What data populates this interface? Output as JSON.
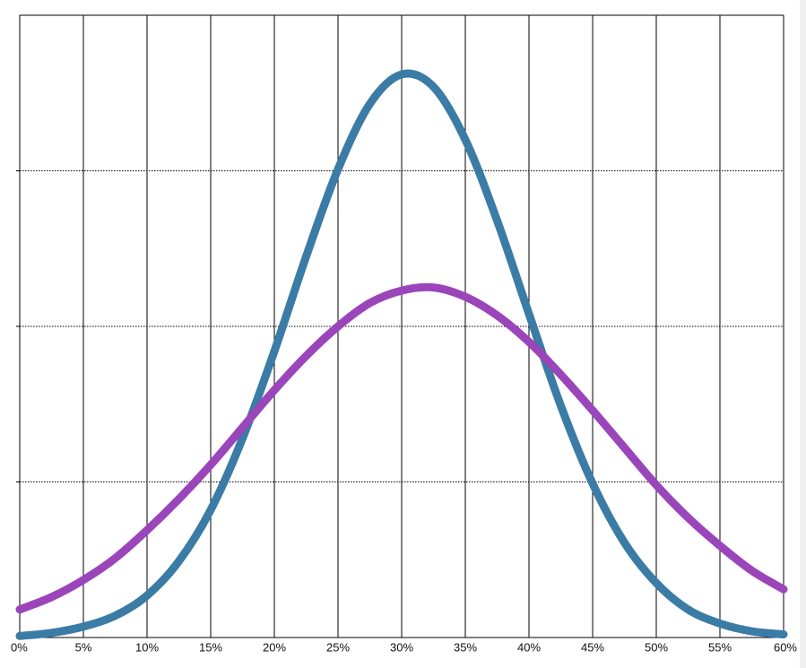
{
  "chart_data": {
    "type": "line",
    "x": [
      0,
      2.5,
      5,
      7.5,
      10,
      12.5,
      15,
      17.5,
      20,
      22.5,
      25,
      27.5,
      30,
      32.5,
      35,
      37.5,
      40,
      42.5,
      45,
      47.5,
      50,
      52.5,
      55,
      57.5,
      60
    ],
    "series": [
      {
        "color": "#3a7ca5",
        "values": [
          0.01,
          0.03,
          0.07,
          0.14,
          0.27,
          0.49,
          0.82,
          1.28,
          1.84,
          2.45,
          3.01,
          3.43,
          3.62,
          3.54,
          3.2,
          2.68,
          2.08,
          1.49,
          0.99,
          0.61,
          0.35,
          0.18,
          0.09,
          0.04,
          0.02
        ]
      },
      {
        "color": "#9b45bb",
        "values": [
          0.18,
          0.26,
          0.37,
          0.51,
          0.69,
          0.89,
          1.11,
          1.35,
          1.59,
          1.81,
          2.0,
          2.15,
          2.23,
          2.25,
          2.19,
          2.07,
          1.9,
          1.69,
          1.46,
          1.22,
          0.98,
          0.77,
          0.59,
          0.43,
          0.31
        ]
      }
    ],
    "xlim": [
      0,
      60
    ],
    "xticks": [
      {
        "value": 0,
        "label": "0%"
      },
      {
        "value": 5,
        "label": "5%"
      },
      {
        "value": 10,
        "label": "10%"
      },
      {
        "value": 15,
        "label": "15%"
      },
      {
        "value": 20,
        "label": "20%"
      },
      {
        "value": 25,
        "label": "25%"
      },
      {
        "value": 30,
        "label": "30%"
      },
      {
        "value": 35,
        "label": "35%"
      },
      {
        "value": 40,
        "label": "40%"
      },
      {
        "value": 45,
        "label": "45%"
      },
      {
        "value": 50,
        "label": "50%"
      },
      {
        "value": 55,
        "label": "55%"
      },
      {
        "value": 60,
        "label": "60%"
      }
    ],
    "ylim": [
      0,
      4
    ],
    "yticks": [
      1,
      2,
      3
    ],
    "grid": true
  }
}
